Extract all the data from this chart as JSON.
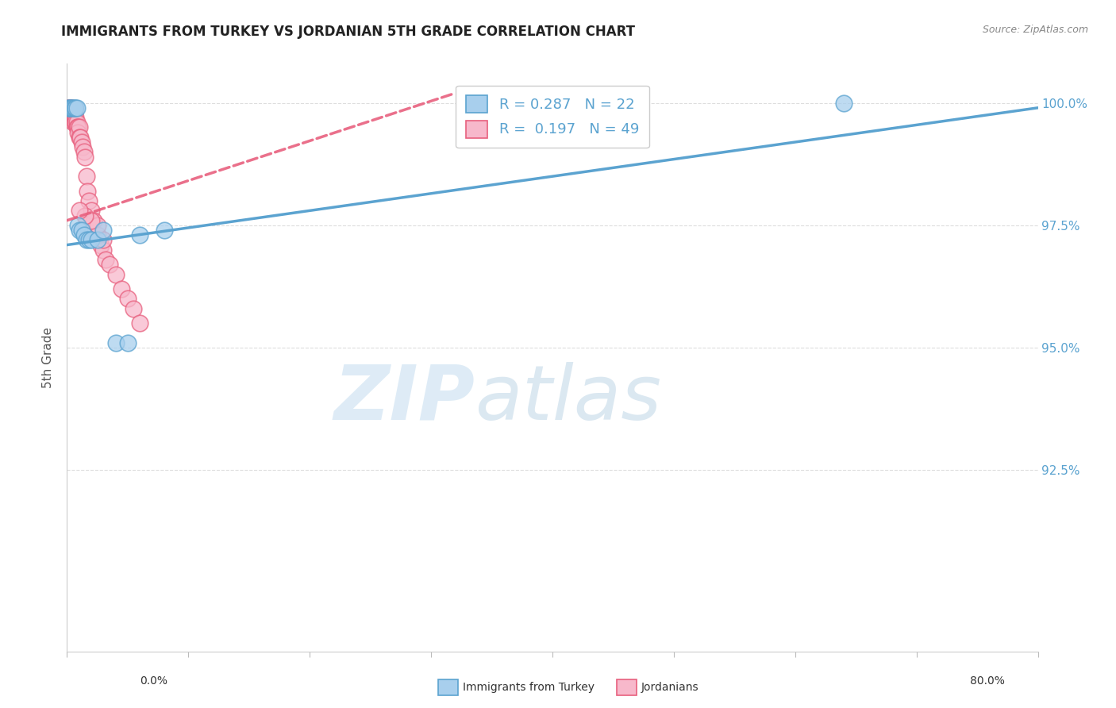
{
  "title": "IMMIGRANTS FROM TURKEY VS JORDANIAN 5TH GRADE CORRELATION CHART",
  "source": "Source: ZipAtlas.com",
  "ylabel": "5th Grade",
  "xlim": [
    0.0,
    0.8
  ],
  "ylim": [
    0.888,
    1.008
  ],
  "ytick_vals": [
    0.925,
    0.95,
    0.975,
    1.0
  ],
  "ytick_labels": [
    "92.5%",
    "95.0%",
    "97.5%",
    "100.0%"
  ],
  "legend_blue_r": "R = 0.287",
  "legend_blue_n": "N = 22",
  "legend_pink_r": "R =  0.197",
  "legend_pink_n": "N = 49",
  "blue_face": "#a8cfed",
  "blue_edge": "#5ba3d0",
  "blue_line": "#5ba3d0",
  "pink_face": "#f7b8cb",
  "pink_edge": "#e8607e",
  "pink_line": "#e8607e",
  "blue_x": [
    0.001,
    0.002,
    0.003,
    0.004,
    0.005,
    0.006,
    0.007,
    0.008,
    0.009,
    0.01,
    0.012,
    0.014,
    0.016,
    0.018,
    0.02,
    0.025,
    0.03,
    0.04,
    0.05,
    0.06,
    0.08,
    0.64
  ],
  "blue_y": [
    0.999,
    0.999,
    0.999,
    0.999,
    0.999,
    0.999,
    0.999,
    0.999,
    0.975,
    0.974,
    0.974,
    0.973,
    0.972,
    0.972,
    0.972,
    0.972,
    0.974,
    0.951,
    0.951,
    0.973,
    0.974,
    1.0
  ],
  "pink_x": [
    0.001,
    0.001,
    0.002,
    0.002,
    0.003,
    0.003,
    0.003,
    0.004,
    0.004,
    0.004,
    0.005,
    0.005,
    0.005,
    0.006,
    0.006,
    0.006,
    0.007,
    0.007,
    0.008,
    0.008,
    0.009,
    0.009,
    0.01,
    0.01,
    0.011,
    0.012,
    0.013,
    0.014,
    0.015,
    0.016,
    0.017,
    0.018,
    0.02,
    0.022,
    0.025,
    0.028,
    0.03,
    0.032,
    0.035,
    0.04,
    0.045,
    0.05,
    0.055,
    0.06,
    0.03,
    0.025,
    0.02,
    0.015,
    0.01
  ],
  "pink_y": [
    0.999,
    0.998,
    0.999,
    0.998,
    0.999,
    0.998,
    0.997,
    0.999,
    0.998,
    0.997,
    0.998,
    0.997,
    0.996,
    0.998,
    0.997,
    0.996,
    0.997,
    0.996,
    0.996,
    0.995,
    0.995,
    0.994,
    0.995,
    0.993,
    0.993,
    0.992,
    0.991,
    0.99,
    0.989,
    0.985,
    0.982,
    0.98,
    0.978,
    0.976,
    0.973,
    0.971,
    0.97,
    0.968,
    0.967,
    0.965,
    0.962,
    0.96,
    0.958,
    0.955,
    0.972,
    0.975,
    0.976,
    0.977,
    0.978
  ],
  "blue_trend_x": [
    0.0,
    0.8
  ],
  "blue_trend_y": [
    0.971,
    0.999
  ],
  "pink_trend_x": [
    0.0,
    0.32
  ],
  "pink_trend_y": [
    0.976,
    1.002
  ],
  "grid_color": "#dddddd",
  "watermark_zip_color": "#c8dff0",
  "watermark_atlas_color": "#b0cce0"
}
